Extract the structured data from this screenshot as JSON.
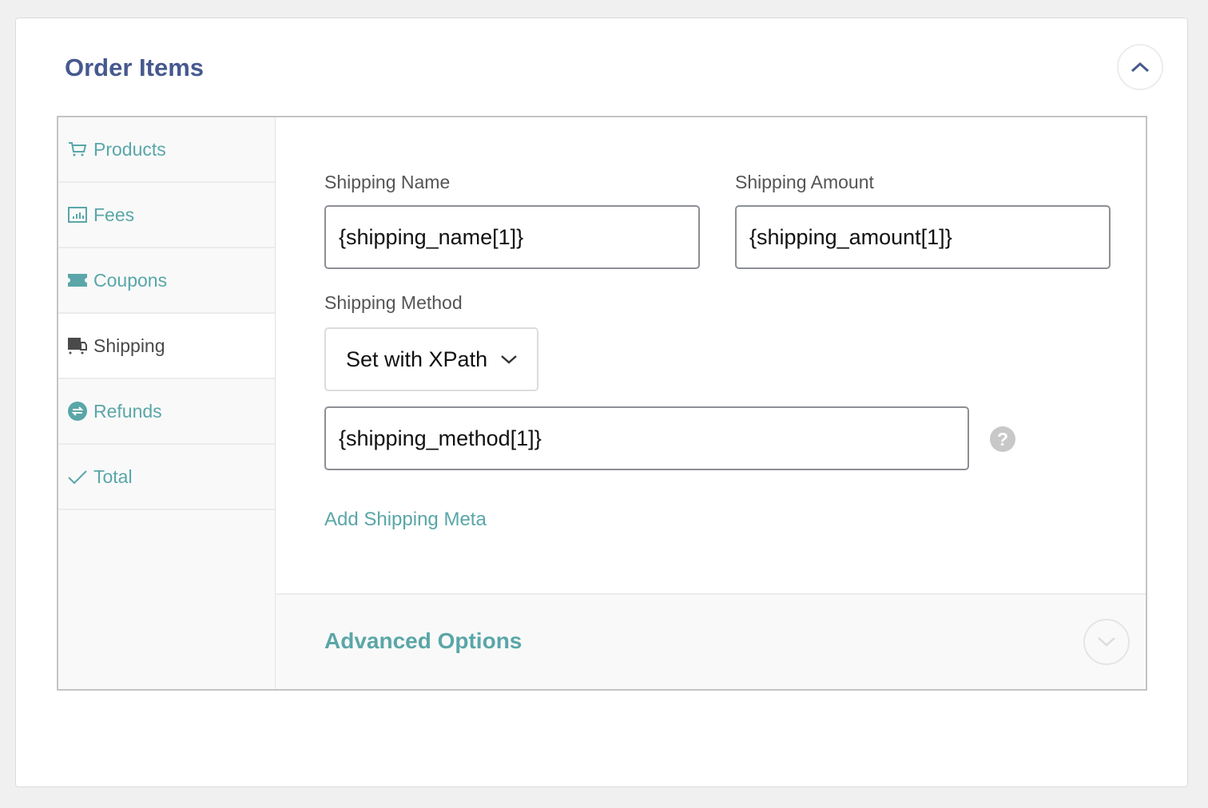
{
  "header": {
    "title": "Order Items",
    "collapse_icon": "chevron-up-icon"
  },
  "sidebar": {
    "items": [
      {
        "label": "Products",
        "icon": "cart-icon"
      },
      {
        "label": "Fees",
        "icon": "chart-icon"
      },
      {
        "label": "Coupons",
        "icon": "ticket-icon"
      },
      {
        "label": "Shipping",
        "icon": "truck-icon",
        "active": true
      },
      {
        "label": "Refunds",
        "icon": "refund-icon"
      },
      {
        "label": "Total",
        "icon": "check-icon"
      }
    ]
  },
  "form": {
    "shipping_name_label": "Shipping Name",
    "shipping_name_value": "{shipping_name[1]}",
    "shipping_amount_label": "Shipping Amount",
    "shipping_amount_value": "{shipping_amount[1]}",
    "shipping_method_label": "Shipping Method",
    "shipping_method_selected": "Set with XPath",
    "shipping_method_value": "{shipping_method[1]}",
    "help": "?",
    "add_meta": "Add Shipping Meta"
  },
  "advanced": {
    "title": "Advanced Options"
  },
  "colors": {
    "accent": "#5aa6a8",
    "title": "#46598e"
  }
}
